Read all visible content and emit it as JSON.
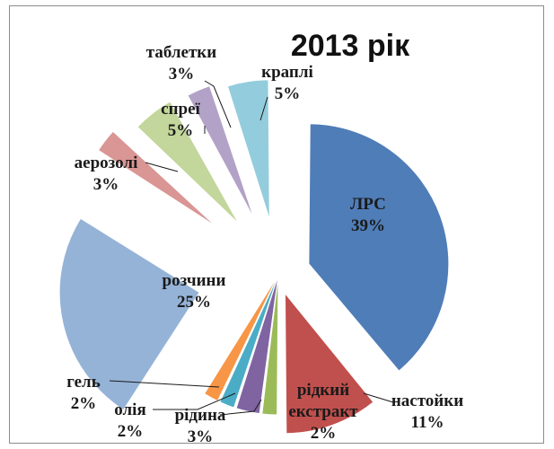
{
  "chart_data": {
    "type": "pie",
    "title": "2013 рік",
    "slices": [
      {
        "name": "ЛРС",
        "value": 39,
        "pct_label": "39%",
        "color": "#4f7db8"
      },
      {
        "name": "настойки",
        "value": 11,
        "pct_label": "11%",
        "color": "#c0504d"
      },
      {
        "name": "рідкий екстракт",
        "value": 2,
        "pct_label": "2%",
        "color": "#9bbb59"
      },
      {
        "name": "рідина",
        "value": 3,
        "pct_label": "3%",
        "color": "#8064a2"
      },
      {
        "name": "олія",
        "value": 2,
        "pct_label": "2%",
        "color": "#4bacc6"
      },
      {
        "name": "гель",
        "value": 2,
        "pct_label": "2%",
        "color": "#f79646"
      },
      {
        "name": "розчини",
        "value": 25,
        "pct_label": "25%",
        "color": "#95b3d7"
      },
      {
        "name": "аерозолі",
        "value": 3,
        "pct_label": "3%",
        "color": "#d99694"
      },
      {
        "name": "спреї",
        "value": 5,
        "pct_label": "5%",
        "color": "#c3d69b"
      },
      {
        "name": "таблетки",
        "value": 3,
        "pct_label": "3%",
        "color": "#b3a2c7"
      },
      {
        "name": "краплі",
        "value": 5,
        "pct_label": "5%",
        "color": "#93cddd"
      }
    ],
    "legend": "none",
    "exploded": true
  }
}
